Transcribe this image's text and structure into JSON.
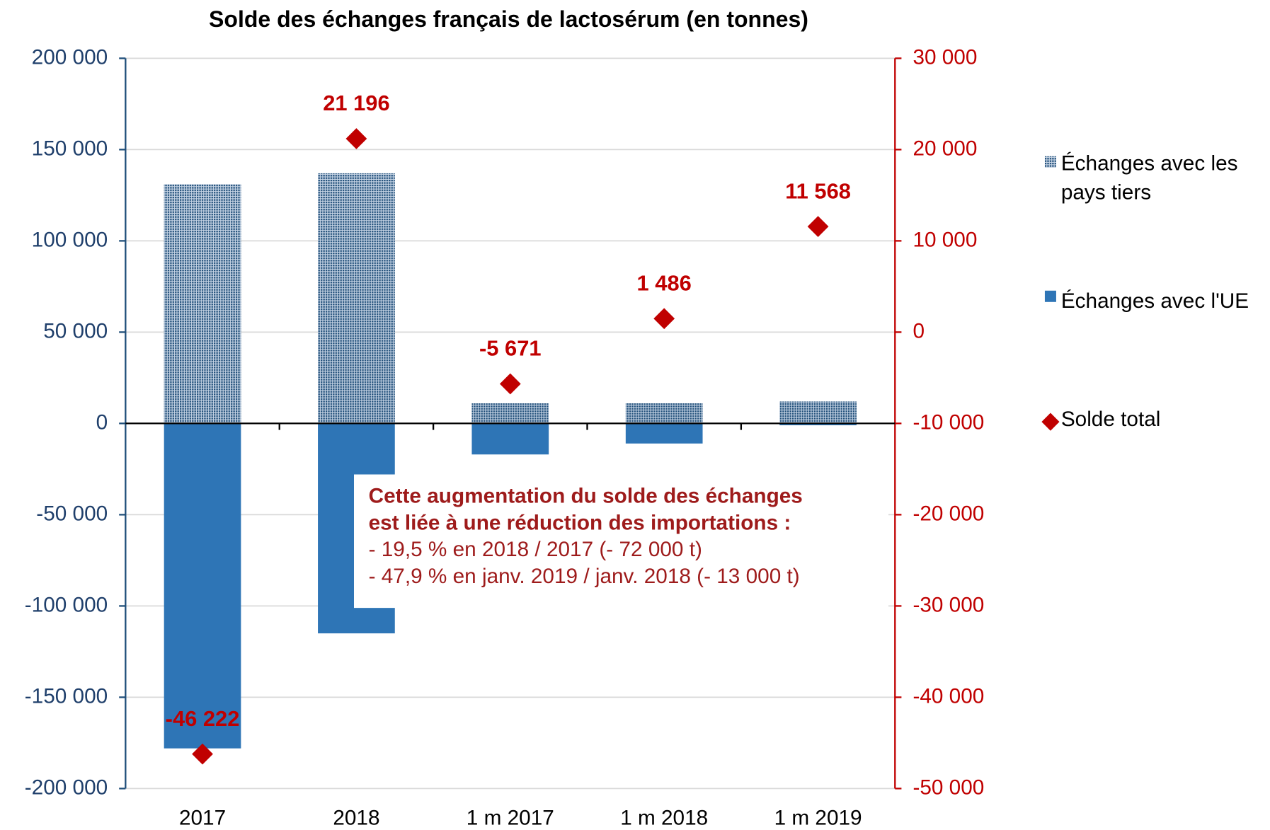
{
  "chart_data": {
    "type": "bar",
    "title": "Solde des échanges français de lactosérum (en tonnes)",
    "categories": [
      "2017",
      "2018",
      "1 m 2017",
      "1 m 2018",
      "1 m 2019"
    ],
    "series": [
      {
        "name": "Échanges avec les pays tiers",
        "color": "#1f4e79",
        "pattern": "dots",
        "values": [
          131000,
          137000,
          11000,
          11000,
          12000
        ]
      },
      {
        "name": "Échanges avec l'UE",
        "color": "#2e75b6",
        "values": [
          -178000,
          -115000,
          -17000,
          -11000,
          -1000
        ]
      },
      {
        "name": "Solde total",
        "type": "scatter",
        "marker": "diamond",
        "color": "#c00000",
        "axis": "y2",
        "values": [
          -46222,
          21196,
          -5671,
          1486,
          11568
        ],
        "value_labels": [
          "-46 222",
          "21 196",
          "-5 671",
          "1 486",
          "11 568"
        ]
      }
    ],
    "ylim": [
      -200000,
      200000
    ],
    "yticks": [
      {
        "value": -200000,
        "label": "-200 000"
      },
      {
        "value": -150000,
        "label": "-150 000"
      },
      {
        "value": -100000,
        "label": "-100 000"
      },
      {
        "value": -50000,
        "label": "-50 000"
      },
      0,
      {
        "value": 50000,
        "label": "50 000"
      },
      {
        "value": 100000,
        "label": "100 000"
      },
      {
        "value": 150000,
        "label": "150 000"
      },
      {
        "value": 200000,
        "label": "200 000"
      }
    ],
    "y2lim": [
      -50000,
      30000
    ],
    "y2ticks": [
      {
        "value": -50000,
        "label": "-50 000"
      },
      {
        "value": -40000,
        "label": "-40 000"
      },
      {
        "value": -30000,
        "label": "-30 000"
      },
      {
        "value": -20000,
        "label": "-20 000"
      },
      {
        "value": -10000,
        "label": "-10 000"
      },
      0,
      {
        "value": 10000,
        "label": "10 000"
      },
      {
        "value": 20000,
        "label": "20 000"
      },
      {
        "value": 30000,
        "label": "30 000"
      }
    ],
    "grid": true,
    "legend": "right",
    "annotation": {
      "title": [
        "Cette augmentation du solde des échanges",
        "est liée à une réduction des importations :"
      ],
      "lines": [
        "- 19,5 % en 2018 / 2017 (- 72 000 t)",
        "- 47,9 % en janv. 2019 / janv. 2018 (- 13 000 t)"
      ]
    }
  }
}
